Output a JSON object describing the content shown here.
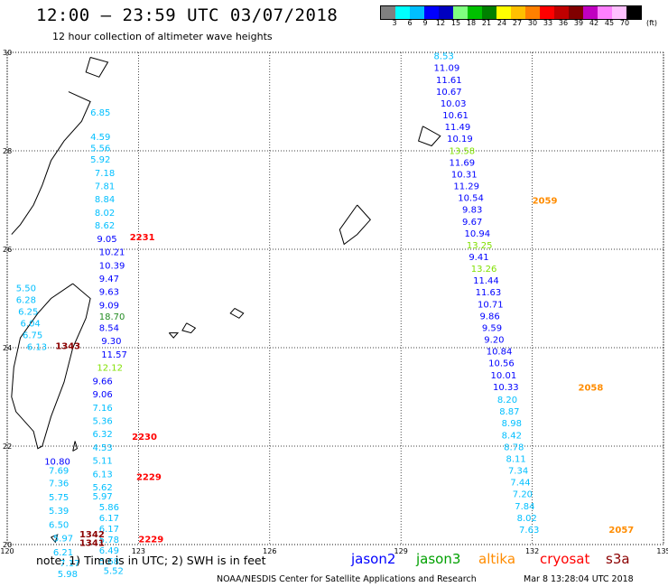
{
  "title": "12:00 – 23:59 UTC 03/07/2018",
  "subtitle": "12 hour collection of altimeter wave heights",
  "colorbar": {
    "colors": [
      "#808080",
      "#00ffff",
      "#00bfff",
      "#0000ff",
      "#0000c0",
      "#80ff80",
      "#00c000",
      "#008000",
      "#ffff00",
      "#ffc000",
      "#ff8000",
      "#ff0000",
      "#c00000",
      "#800000",
      "#c000c0",
      "#ff80ff",
      "#ffc0ff",
      "#000000"
    ],
    "labels": [
      "3",
      "6",
      "9",
      "12",
      "15",
      "18",
      "21",
      "24",
      "27",
      "30",
      "33",
      "36",
      "39",
      "42",
      "45",
      "70"
    ],
    "unit": "(ft)"
  },
  "map": {
    "lon_ticks": [
      "120",
      "123",
      "126",
      "129",
      "132",
      "135"
    ],
    "lat_ticks": [
      "30",
      "28",
      "26",
      "24",
      "22",
      "20"
    ],
    "grid": true
  },
  "colors": {
    "c1": "#00bfff",
    "c2": "#0000ff",
    "c3": "#000080",
    "c4": "#00cc66",
    "c5": "#80e000",
    "c6": "#ff8c00",
    "c7": "#ff0000",
    "c8": "#8b0000",
    "c9": "#228b22"
  },
  "chart_data": {
    "type": "scatter",
    "xlim": [
      120,
      135
    ],
    "ylim": [
      20,
      30
    ],
    "points": [
      {
        "lat": 28.72,
        "lon": 121.9,
        "t": "6.85",
        "c": "c1"
      },
      {
        "lat": 28.22,
        "lon": 121.9,
        "t": "4.59",
        "c": "c1"
      },
      {
        "lat": 27.99,
        "lon": 121.9,
        "t": "5.56",
        "c": "c1"
      },
      {
        "lat": 27.76,
        "lon": 121.9,
        "t": "5.92",
        "c": "c1"
      },
      {
        "lat": 27.49,
        "lon": 122.0,
        "t": "7.18",
        "c": "c1"
      },
      {
        "lat": 27.22,
        "lon": 122.0,
        "t": "7.81",
        "c": "c1"
      },
      {
        "lat": 26.95,
        "lon": 122.0,
        "t": "8.84",
        "c": "c1"
      },
      {
        "lat": 26.68,
        "lon": 122.0,
        "t": "8.02",
        "c": "c1"
      },
      {
        "lat": 26.42,
        "lon": 122.0,
        "t": "8.62",
        "c": "c1"
      },
      {
        "lat": 26.15,
        "lon": 122.05,
        "t": "9.05",
        "c": "c2"
      },
      {
        "lat": 25.88,
        "lon": 122.1,
        "t": "10.21",
        "c": "c2"
      },
      {
        "lat": 25.61,
        "lon": 122.1,
        "t": "10.39",
        "c": "c2"
      },
      {
        "lat": 25.34,
        "lon": 122.1,
        "t": "9.47",
        "c": "c2"
      },
      {
        "lat": 25.07,
        "lon": 122.1,
        "t": "9.63",
        "c": "c2"
      },
      {
        "lat": 24.8,
        "lon": 122.1,
        "t": "9.09",
        "c": "c2"
      },
      {
        "lat": 24.57,
        "lon": 122.1,
        "t": "18.70",
        "c": "c9"
      },
      {
        "lat": 24.34,
        "lon": 122.1,
        "t": "8.54",
        "c": "c2"
      },
      {
        "lat": 24.07,
        "lon": 122.15,
        "t": "9.30",
        "c": "c2"
      },
      {
        "lat": 23.8,
        "lon": 122.15,
        "t": "11.57",
        "c": "c2"
      },
      {
        "lat": 23.53,
        "lon": 122.05,
        "t": "12.12",
        "c": "c5"
      },
      {
        "lat": 23.26,
        "lon": 121.95,
        "t": "9.66",
        "c": "c2"
      },
      {
        "lat": 22.99,
        "lon": 121.95,
        "t": "9.06",
        "c": "c2"
      },
      {
        "lat": 22.72,
        "lon": 121.95,
        "t": "7.16",
        "c": "c1"
      },
      {
        "lat": 22.45,
        "lon": 121.95,
        "t": "5.36",
        "c": "c1"
      },
      {
        "lat": 22.18,
        "lon": 121.95,
        "t": "6.32",
        "c": "c1"
      },
      {
        "lat": 21.91,
        "lon": 121.95,
        "t": "4.53",
        "c": "c1"
      },
      {
        "lat": 21.64,
        "lon": 121.95,
        "t": "5.11",
        "c": "c1"
      },
      {
        "lat": 21.37,
        "lon": 121.95,
        "t": "6.13",
        "c": "c1"
      },
      {
        "lat": 21.1,
        "lon": 121.95,
        "t": "5.62",
        "c": "c1"
      },
      {
        "lat": 20.92,
        "lon": 121.95,
        "t": "5.97",
        "c": "c1"
      },
      {
        "lat": 20.7,
        "lon": 122.1,
        "t": "5.86",
        "c": "c1"
      },
      {
        "lat": 20.48,
        "lon": 122.1,
        "t": "6.17",
        "c": "c1"
      },
      {
        "lat": 20.26,
        "lon": 122.1,
        "t": "6.17",
        "c": "c1"
      },
      {
        "lat": 20.04,
        "lon": 122.1,
        "t": "5.78",
        "c": "c1"
      },
      {
        "lat": 19.82,
        "lon": 122.1,
        "t": "6.49",
        "c": "c1"
      },
      {
        "lat": 19.6,
        "lon": 122.1,
        "t": "5.68",
        "c": "c1"
      },
      {
        "lat": 19.4,
        "lon": 122.2,
        "t": "5.52",
        "c": "c1"
      },
      {
        "lat": 25.15,
        "lon": 120.2,
        "t": "5.50",
        "c": "c1"
      },
      {
        "lat": 24.91,
        "lon": 120.2,
        "t": "6.28",
        "c": "c1"
      },
      {
        "lat": 24.67,
        "lon": 120.25,
        "t": "6.25",
        "c": "c1"
      },
      {
        "lat": 24.43,
        "lon": 120.3,
        "t": "6.04",
        "c": "c1"
      },
      {
        "lat": 24.19,
        "lon": 120.35,
        "t": "6.75",
        "c": "c1"
      },
      {
        "lat": 23.95,
        "lon": 120.45,
        "t": "6.13",
        "c": "c1"
      },
      {
        "lat": 21.62,
        "lon": 120.85,
        "t": "10.80",
        "c": "c2"
      },
      {
        "lat": 21.44,
        "lon": 120.95,
        "t": "7.69",
        "c": "c1"
      },
      {
        "lat": 21.18,
        "lon": 120.95,
        "t": "7.36",
        "c": "c1"
      },
      {
        "lat": 20.9,
        "lon": 120.95,
        "t": "5.75",
        "c": "c1"
      },
      {
        "lat": 20.62,
        "lon": 120.95,
        "t": "5.39",
        "c": "c1"
      },
      {
        "lat": 20.34,
        "lon": 120.95,
        "t": "6.50",
        "c": "c1"
      },
      {
        "lat": 20.06,
        "lon": 121.05,
        "t": "5.97",
        "c": "c1"
      },
      {
        "lat": 19.78,
        "lon": 121.05,
        "t": "6.21",
        "c": "c1"
      },
      {
        "lat": 19.56,
        "lon": 121.2,
        "t": "7.17",
        "c": "c1"
      },
      {
        "lat": 19.34,
        "lon": 121.15,
        "t": "5.98",
        "c": "c1"
      },
      {
        "lat": 29.86,
        "lon": 129.75,
        "t": "8.53",
        "c": "c1"
      },
      {
        "lat": 29.62,
        "lon": 129.75,
        "t": "11.09",
        "c": "c2"
      },
      {
        "lat": 29.38,
        "lon": 129.8,
        "t": "11.61",
        "c": "c2"
      },
      {
        "lat": 29.14,
        "lon": 129.8,
        "t": "10.67",
        "c": "c2"
      },
      {
        "lat": 28.9,
        "lon": 129.9,
        "t": "10.03",
        "c": "c2"
      },
      {
        "lat": 28.66,
        "lon": 129.95,
        "t": "10.61",
        "c": "c2"
      },
      {
        "lat": 28.42,
        "lon": 130.0,
        "t": "11.49",
        "c": "c2"
      },
      {
        "lat": 28.18,
        "lon": 130.05,
        "t": "10.19",
        "c": "c2"
      },
      {
        "lat": 27.94,
        "lon": 130.1,
        "t": "13.58",
        "c": "c5"
      },
      {
        "lat": 27.7,
        "lon": 130.1,
        "t": "11.69",
        "c": "c2"
      },
      {
        "lat": 27.46,
        "lon": 130.15,
        "t": "10.31",
        "c": "c2"
      },
      {
        "lat": 27.22,
        "lon": 130.2,
        "t": "11.29",
        "c": "c2"
      },
      {
        "lat": 26.98,
        "lon": 130.3,
        "t": "10.54",
        "c": "c2"
      },
      {
        "lat": 26.74,
        "lon": 130.4,
        "t": "9.83",
        "c": "c2"
      },
      {
        "lat": 26.5,
        "lon": 130.4,
        "t": "9.67",
        "c": "c2"
      },
      {
        "lat": 26.26,
        "lon": 130.45,
        "t": "10.94",
        "c": "c2"
      },
      {
        "lat": 26.02,
        "lon": 130.5,
        "t": "13.25",
        "c": "c5"
      },
      {
        "lat": 25.78,
        "lon": 130.55,
        "t": "9.41",
        "c": "c2"
      },
      {
        "lat": 25.54,
        "lon": 130.6,
        "t": "13.26",
        "c": "c5"
      },
      {
        "lat": 25.3,
        "lon": 130.65,
        "t": "11.44",
        "c": "c2"
      },
      {
        "lat": 25.06,
        "lon": 130.7,
        "t": "11.63",
        "c": "c2"
      },
      {
        "lat": 24.82,
        "lon": 130.75,
        "t": "10.71",
        "c": "c2"
      },
      {
        "lat": 24.58,
        "lon": 130.8,
        "t": "9.86",
        "c": "c2"
      },
      {
        "lat": 24.34,
        "lon": 130.85,
        "t": "9.59",
        "c": "c2"
      },
      {
        "lat": 24.1,
        "lon": 130.9,
        "t": "9.20",
        "c": "c2"
      },
      {
        "lat": 23.86,
        "lon": 130.95,
        "t": "10.84",
        "c": "c2"
      },
      {
        "lat": 23.62,
        "lon": 131.0,
        "t": "10.56",
        "c": "c2"
      },
      {
        "lat": 23.38,
        "lon": 131.05,
        "t": "10.01",
        "c": "c2"
      },
      {
        "lat": 23.14,
        "lon": 131.1,
        "t": "10.33",
        "c": "c2"
      },
      {
        "lat": 22.88,
        "lon": 131.2,
        "t": "8.20",
        "c": "c1"
      },
      {
        "lat": 22.64,
        "lon": 131.25,
        "t": "8.87",
        "c": "c1"
      },
      {
        "lat": 22.4,
        "lon": 131.3,
        "t": "8.98",
        "c": "c1"
      },
      {
        "lat": 22.16,
        "lon": 131.3,
        "t": "8.42",
        "c": "c1"
      },
      {
        "lat": 21.92,
        "lon": 131.35,
        "t": "8.78",
        "c": "c1"
      },
      {
        "lat": 21.68,
        "lon": 131.4,
        "t": "8.11",
        "c": "c1"
      },
      {
        "lat": 21.44,
        "lon": 131.45,
        "t": "7.34",
        "c": "c1"
      },
      {
        "lat": 21.2,
        "lon": 131.5,
        "t": "7.44",
        "c": "c1"
      },
      {
        "lat": 20.96,
        "lon": 131.55,
        "t": "7.20",
        "c": "c1"
      },
      {
        "lat": 20.72,
        "lon": 131.6,
        "t": "7.84",
        "c": "c1"
      },
      {
        "lat": 20.48,
        "lon": 131.65,
        "t": "8.02",
        "c": "c1"
      },
      {
        "lat": 20.24,
        "lon": 131.7,
        "t": "7.63",
        "c": "c1"
      }
    ],
    "time_labels": [
      {
        "lat": 26.18,
        "lon": 122.8,
        "t": "2231",
        "c": "c7"
      },
      {
        "lat": 23.97,
        "lon": 121.1,
        "t": "1343",
        "c": "c8"
      },
      {
        "lat": 22.13,
        "lon": 122.85,
        "t": "2230",
        "c": "c7"
      },
      {
        "lat": 21.31,
        "lon": 122.95,
        "t": "2229",
        "c": "c7"
      },
      {
        "lat": 20.05,
        "lon": 123.0,
        "t": "2229",
        "c": "c7"
      },
      {
        "lat": 20.15,
        "lon": 121.65,
        "t": "1342",
        "c": "c8"
      },
      {
        "lat": 19.97,
        "lon": 121.65,
        "t": "1341",
        "c": "c8"
      },
      {
        "lat": 26.93,
        "lon": 132.0,
        "t": "2059",
        "c": "c6"
      },
      {
        "lat": 23.13,
        "lon": 133.05,
        "t": "2058",
        "c": "c6"
      },
      {
        "lat": 20.24,
        "lon": 133.75,
        "t": "2057",
        "c": "c6"
      }
    ]
  },
  "footer": {
    "note": "note:  1) Time is in UTC;  2) SWH is in feet",
    "sat_jason2": "jason2",
    "sat_jason3": "jason3",
    "sat_altika": "altika",
    "sat_cryosat": "cryosat",
    "sat_s3a": "s3a",
    "credit": "NOAA/NESDIS Center for Satellite Applications and Research",
    "date": "Mar  8 13:28:04 UTC 2018"
  }
}
